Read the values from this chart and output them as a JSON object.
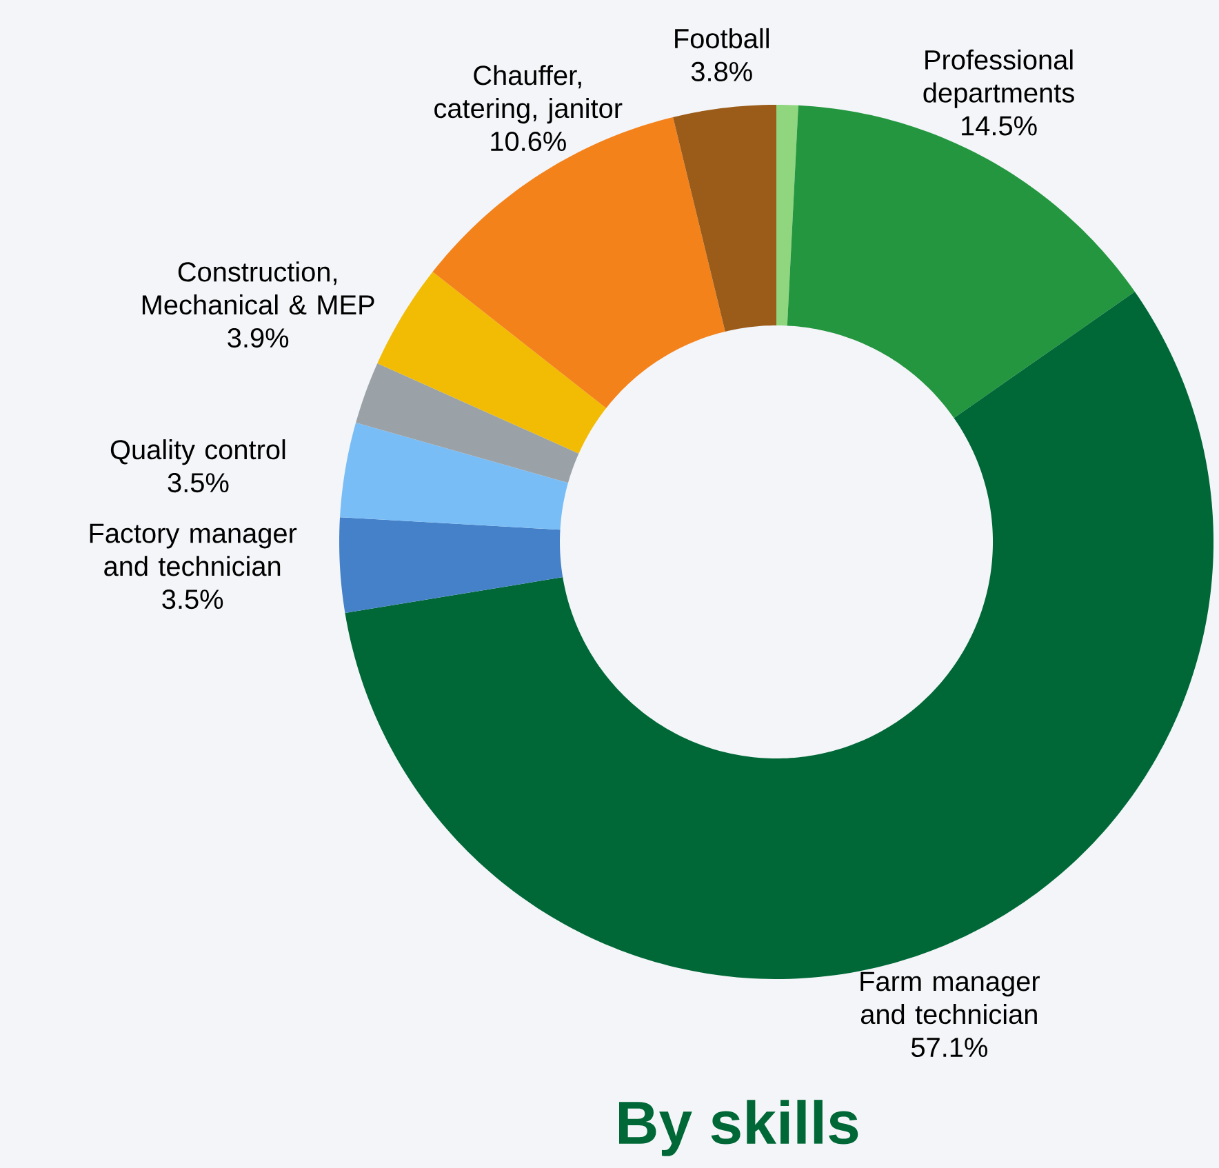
{
  "chart_data": {
    "type": "donut",
    "title": "By skills",
    "categories": [
      null,
      "Professional departments",
      "Farm manager and technician",
      "Factory manager and technician",
      "Quality control",
      null,
      "Construction, Mechanical & MEP",
      "Chauffer, catering, janitor",
      "Football"
    ],
    "values": [
      0.8,
      14.5,
      57.1,
      3.5,
      3.5,
      2.3,
      3.9,
      10.6,
      3.8
    ],
    "value_labels": [
      null,
      "14.5%",
      "57.1%",
      "3.5%",
      "3.5%",
      null,
      "3.9%",
      "10.6%",
      "3.8%"
    ],
    "colors": [
      "#8fd67f",
      "#23963f",
      "#006837",
      "#4581c8",
      "#79bdf7",
      "#9aa2a8",
      "#f2bb04",
      "#f4821b",
      "#9c5c19"
    ]
  }
}
